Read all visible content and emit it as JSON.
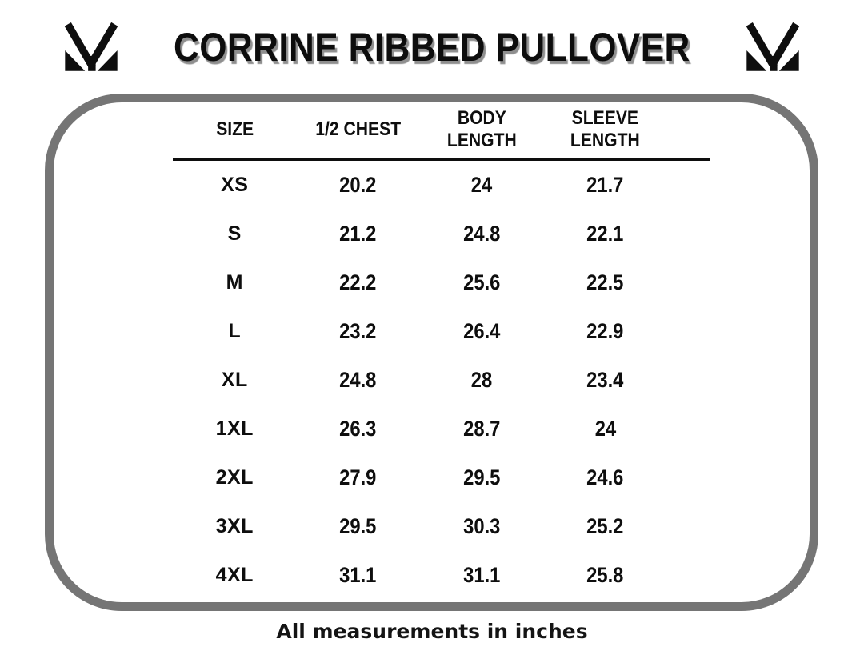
{
  "header": {
    "title": "CORRINE RIBBED PULLOVER",
    "logo_name": "brand-m-monogram"
  },
  "table": {
    "headers": [
      {
        "line1": "SIZE",
        "line2": ""
      },
      {
        "line1": "1/2 CHEST",
        "line2": ""
      },
      {
        "line1": "BODY",
        "line2": "LENGTH"
      },
      {
        "line1": "SLEEVE",
        "line2": "LENGTH"
      }
    ]
  },
  "footer": {
    "note": "All measurements in inches"
  },
  "colors": {
    "text": "#0e0e0e",
    "panel_border": "#757575",
    "title_shadow": "#8f8f8f",
    "background": "#ffffff"
  },
  "chart_data": {
    "type": "table",
    "title": "CORRINE RIBBED PULLOVER",
    "columns": [
      "SIZE",
      "1/2 CHEST",
      "BODY LENGTH",
      "SLEEVE LENGTH"
    ],
    "units": "inches",
    "note": "All measurements in inches",
    "rows": [
      [
        "XS",
        "20.2",
        "24",
        "21.7"
      ],
      [
        "S",
        "21.2",
        "24.8",
        "22.1"
      ],
      [
        "M",
        "22.2",
        "25.6",
        "22.5"
      ],
      [
        "L",
        "23.2",
        "26.4",
        "22.9"
      ],
      [
        "XL",
        "24.8",
        "28",
        "23.4"
      ],
      [
        "1XL",
        "26.3",
        "28.7",
        "24"
      ],
      [
        "2XL",
        "27.9",
        "29.5",
        "24.6"
      ],
      [
        "3XL",
        "29.5",
        "30.3",
        "25.2"
      ],
      [
        "4XL",
        "31.1",
        "31.1",
        "25.8"
      ]
    ]
  }
}
